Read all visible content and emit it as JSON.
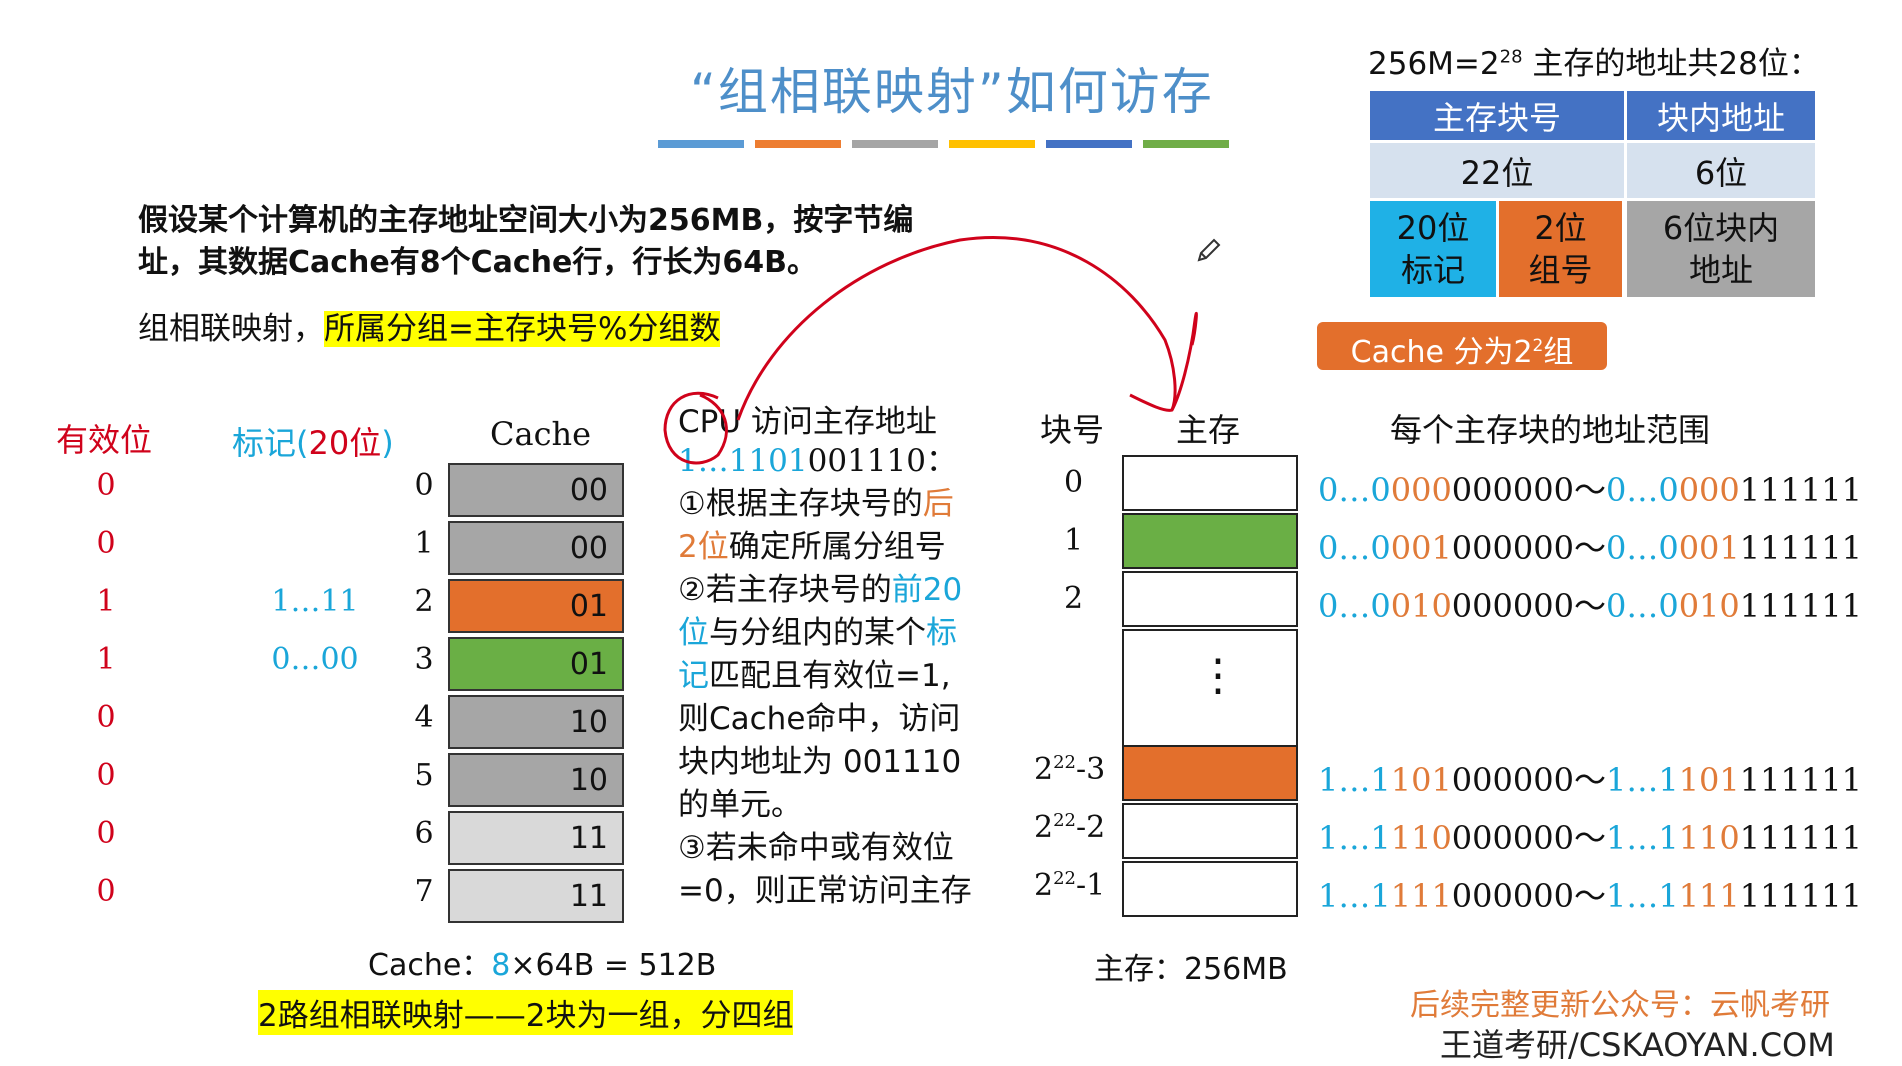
{
  "title": "“组相联映射”如何访存",
  "title_bar_colors": [
    "#5b9bd5",
    "#ed7d31",
    "#a5a5a5",
    "#ffc000",
    "#4472c4",
    "#70ad47"
  ],
  "intro": {
    "line1": "假设某个计算机的主存地址空间大小为256MB，按字节编",
    "line2": "址，其数据Cache有8个Cache行，行长为64B。",
    "mapping_prefix": "组相联映射，",
    "mapping_highlight": "所属分组=主存块号%分组数"
  },
  "addr_panel": {
    "heading_pre": "256M=2",
    "heading_exp": "28",
    "heading_post": " 主存的地址共28位：",
    "block_no": "主存块号",
    "in_block": "块内地址",
    "bits22": "22位",
    "bits6": "6位",
    "tag_l1": "20位",
    "tag_l2": "标记",
    "group_l1": "2位",
    "group_l2": "组号",
    "off_l1": "6位块内",
    "off_l2": "地址",
    "cache_groups_pre": "Cache 分为2",
    "cache_groups_exp": "2",
    "cache_groups_post": "组"
  },
  "cache_table": {
    "valid_header": "有效位",
    "tag_header_pre": "标记(",
    "tag_header_num": "20位",
    "tag_header_post": ")",
    "cache_header": "Cache",
    "rows": [
      {
        "valid": "0",
        "tag": "",
        "index": "0",
        "group": "00",
        "color": "#a6a6a6"
      },
      {
        "valid": "0",
        "tag": "",
        "index": "1",
        "group": "00",
        "color": "#a6a6a6"
      },
      {
        "valid": "1",
        "tag": "1…11",
        "index": "2",
        "group": "01",
        "color": "#e36f2c"
      },
      {
        "valid": "1",
        "tag": "0…00",
        "index": "3",
        "group": "01",
        "color": "#6aaf45"
      },
      {
        "valid": "0",
        "tag": "",
        "index": "4",
        "group": "10",
        "color": "#a6a6a6"
      },
      {
        "valid": "0",
        "tag": "",
        "index": "5",
        "group": "10",
        "color": "#a6a6a6"
      },
      {
        "valid": "0",
        "tag": "",
        "index": "6",
        "group": "11",
        "color": "#d9d9d9"
      },
      {
        "valid": "0",
        "tag": "",
        "index": "7",
        "group": "11",
        "color": "#d9d9d9"
      }
    ],
    "size_pre": "Cache：",
    "size_num": "8",
    "size_post": "×64B = 512B",
    "note": "2路组相联映射——2块为一组，分四组"
  },
  "steps": {
    "head": "CPU 访问主存地址",
    "addr_a": "1…1101",
    "addr_b": "001110",
    "addr_c": "：",
    "s1a": "①根据主存块号的",
    "s1b": "后",
    "s1c": "2位",
    "s1d": "确定所属分组号",
    "s2a": "②若主存块号的",
    "s2b": "前20",
    "s2c": "位",
    "s2d": "与分组内的某个",
    "s2e": "标",
    "s2f": "记",
    "s2g": "匹配且有效位=1,",
    "s2h": "则Cache命中，访问",
    "s2i": "块内地址为 001110",
    "s2j": "的单元。",
    "s3a": "③若未命中或有效位",
    "s3b": "=0，则正常访问主存"
  },
  "memory": {
    "block_header": "块号",
    "mem_header": "主存",
    "range_header": "每个主存块的地址范围",
    "rows": [
      {
        "label": "0",
        "exp": "",
        "color": "#ffffff",
        "a1": "0…0",
        "a2": "000",
        "a3": "000000",
        "a4": "0…0",
        "a5": "000",
        "a6": "111111"
      },
      {
        "label": "1",
        "exp": "",
        "color": "#6aaf45",
        "a1": "0…0",
        "a2": "001",
        "a3": "000000",
        "a4": "0…0",
        "a5": "001",
        "a6": "111111"
      },
      {
        "label": "2",
        "exp": "",
        "color": "#ffffff",
        "a1": "0…0",
        "a2": "010",
        "a3": "000000",
        "a4": "0…0",
        "a5": "010",
        "a6": "111111"
      },
      {
        "label": "2",
        "exp": "22",
        "suffix": "-3",
        "color": "#e36f2c",
        "a1": "1…1",
        "a2": "101",
        "a3": "000000",
        "a4": "1…1",
        "a5": "101",
        "a6": "111111"
      },
      {
        "label": "2",
        "exp": "22",
        "suffix": "-2",
        "color": "#ffffff",
        "a1": "1…1",
        "a2": "110",
        "a3": "000000",
        "a4": "1…1",
        "a5": "110",
        "a6": "111111"
      },
      {
        "label": "2",
        "exp": "22",
        "suffix": "-1",
        "color": "#ffffff",
        "a1": "1…1",
        "a2": "111",
        "a3": "000000",
        "a4": "1…1",
        "a5": "111",
        "a6": "111111"
      }
    ],
    "dots": "⋮",
    "tilde": "～",
    "size": "主存：256MB"
  },
  "footer": {
    "line1": "后续完整更新公众号：云帆考研",
    "line2": "王道考研/CSKAOYAN.COM"
  },
  "pen_icon": "pencil-icon"
}
